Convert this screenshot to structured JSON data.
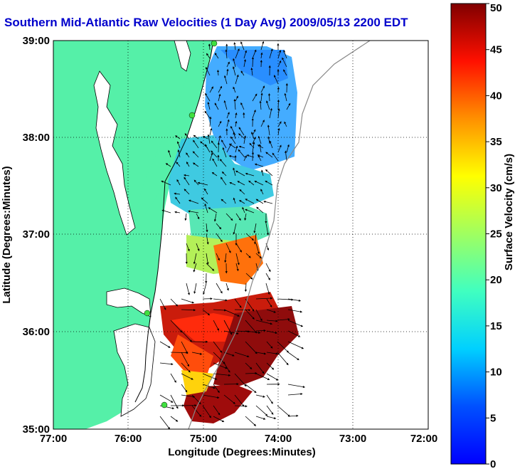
{
  "title": "Southern Mid-Atlantic Raw Velocities (1 Day Avg) 2009/05/13 2200 EDT",
  "map": {
    "xlabel": "Longitude (Degrees:Minutes)",
    "ylabel": "Latitude (Degrees:Minutes)",
    "x_ticks": [
      "77:00",
      "76:00",
      "75:00",
      "74:00",
      "73:00",
      "72:00"
    ],
    "y_ticks": [
      "39:00",
      "38:00",
      "37:00",
      "36:00",
      "35:00"
    ],
    "xlim": [
      -77,
      -72
    ],
    "ylim": [
      35,
      39
    ],
    "land_color": "#55f0a8",
    "grid": "dotted"
  },
  "colorbar": {
    "label": "Surface Velocity (cm/s)",
    "ticks": [
      "0",
      "5",
      "10",
      "15",
      "20",
      "25",
      "30",
      "35",
      "40",
      "45",
      "50"
    ],
    "range": [
      0,
      50
    ],
    "colormap": "jet"
  },
  "chart_data": {
    "type": "heatmap",
    "title": "Southern Mid-Atlantic Raw Velocities (1 Day Avg) 2009/05/13 2200 EDT",
    "xlabel": "Longitude (Degrees:Minutes)",
    "ylabel": "Latitude (Degrees:Minutes)",
    "xlim": [
      -77,
      -72
    ],
    "ylim": [
      35,
      39
    ],
    "value_range": [
      0,
      50
    ],
    "units": "cm/s",
    "regions": [
      {
        "lat": 38.75,
        "lon": -74.5,
        "speed": 8
      },
      {
        "lat": 38.0,
        "lon": -74.6,
        "speed": 10
      },
      {
        "lat": 37.6,
        "lon": -74.9,
        "speed": 14
      },
      {
        "lat": 37.0,
        "lon": -74.8,
        "speed": 20
      },
      {
        "lat": 36.5,
        "lon": -74.6,
        "speed": 35
      },
      {
        "lat": 36.1,
        "lon": -74.9,
        "speed": 45
      },
      {
        "lat": 35.7,
        "lon": -74.5,
        "speed": 50
      },
      {
        "lat": 35.3,
        "lon": -74.7,
        "speed": 48
      }
    ]
  }
}
